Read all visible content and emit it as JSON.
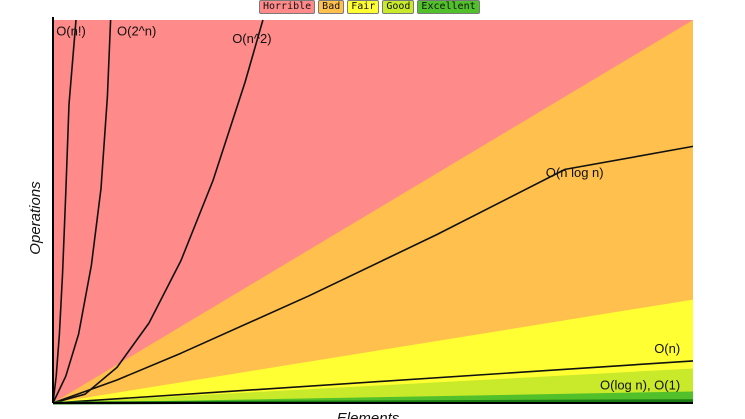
{
  "legend": [
    {
      "label": "Horrible",
      "color": "#ff8a8a"
    },
    {
      "label": "Bad",
      "color": "#ffc04d"
    },
    {
      "label": "Fair",
      "color": "#ffff33"
    },
    {
      "label": "Good",
      "color": "#c8ea2b"
    },
    {
      "label": "Excellent",
      "color": "#52c02a"
    }
  ],
  "chart_data": {
    "type": "area",
    "title": "",
    "xlabel": "Elements",
    "ylabel": "Operations",
    "grid": false,
    "legend_position": "top",
    "xlim": [
      0,
      100
    ],
    "ylim": [
      0,
      100
    ],
    "regions": [
      {
        "name": "Horrible",
        "color": "#ff8a8a"
      },
      {
        "name": "Bad",
        "color": "#ffc04d"
      },
      {
        "name": "Fair",
        "color": "#ffff33"
      },
      {
        "name": "Good",
        "color": "#c8ea2b"
      },
      {
        "name": "Excellent",
        "color": "#52c02a"
      }
    ],
    "series": [
      {
        "name": "O(n!)",
        "x": [
          0,
          0.5,
          1.0,
          1.5,
          2.0,
          2.5,
          3.6
        ],
        "y": [
          0,
          7,
          18,
          34,
          55,
          78,
          100
        ]
      },
      {
        "name": "O(2^n)",
        "x": [
          0,
          2,
          4,
          6,
          7.5,
          8.5,
          9.0
        ],
        "y": [
          0,
          7,
          18,
          36,
          56,
          80,
          100
        ]
      },
      {
        "name": "O(n^2)",
        "x": [
          0,
          5,
          10,
          15,
          20,
          25,
          30,
          32.8
        ],
        "y": [
          0,
          2.3,
          9.3,
          20.9,
          37.2,
          58.1,
          83.7,
          100
        ]
      },
      {
        "name": "O(n log n)",
        "x": [
          0,
          10,
          20,
          40,
          60,
          80,
          100
        ],
        "y": [
          0,
          6,
          13,
          28,
          44,
          61,
          67
        ]
      },
      {
        "name": "O(n)",
        "x": [
          0,
          100
        ],
        "y": [
          0,
          11
        ]
      },
      {
        "name": "O(log n), O(1)",
        "x": [
          0,
          100
        ],
        "y": [
          0,
          0.6
        ]
      }
    ]
  }
}
